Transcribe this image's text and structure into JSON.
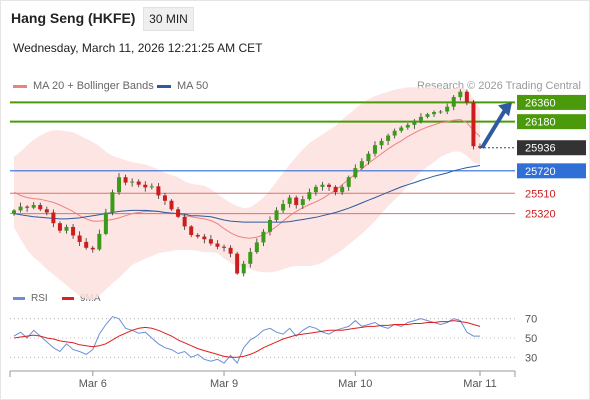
{
  "header": {
    "title": "Hang Seng (HKFE)",
    "timeframe": "30 MIN",
    "datetime": "Wednesday, March 11, 2026 12:21:25 AM CET",
    "credit": "Research © 2026 Trading Central"
  },
  "colors": {
    "support_resistance_green": "#4a9a0b",
    "pivot_blue": "#2f6fd6",
    "support_red": "#e07070",
    "band_fill": "#fde0de",
    "ma20": "#f08080",
    "ma50": "#2d5aa0",
    "bull": "#3a9b1a",
    "bear": "#cc1c1c",
    "rsi_line": "#6b8fd4",
    "rsi_ma": "#dd2020",
    "current_price_box": "#333333",
    "arrow": "#2d5aa0"
  },
  "chart_data": [
    {
      "type": "candlestick",
      "title": "",
      "legend": [
        {
          "name": "MA 20 + Bollinger Bands",
          "color": "#f08080"
        },
        {
          "name": "MA 50",
          "color": "#2d5aa0"
        }
      ],
      "ylim": [
        24680,
        26420
      ],
      "x_ticks": [
        {
          "label": "Mar 6",
          "index": 12
        },
        {
          "label": "Mar 9",
          "index": 32
        },
        {
          "label": "Mar 10",
          "index": 52
        },
        {
          "label": "Mar 11",
          "index": 71
        }
      ],
      "levels": [
        {
          "label": "26360",
          "value": 26360,
          "style": "resistance"
        },
        {
          "label": "26180",
          "value": 26180,
          "style": "resistance"
        },
        {
          "label": "25936",
          "value": 25936,
          "style": "current"
        },
        {
          "label": "25720",
          "value": 25720,
          "style": "pivot"
        },
        {
          "label": "25510",
          "value": 25510,
          "style": "support"
        },
        {
          "label": "25320",
          "value": 25320,
          "style": "support"
        }
      ],
      "close": [
        25350,
        25385,
        25375,
        25400,
        25360,
        25330,
        25230,
        25160,
        25195,
        25115,
        25055,
        25000,
        24985,
        25130,
        25330,
        25520,
        25660,
        25610,
        25620,
        25590,
        25565,
        25575,
        25490,
        25440,
        25360,
        25290,
        25200,
        25120,
        25105,
        25080,
        25040,
        25010,
        25000,
        24945,
        24760,
        24850,
        24960,
        25050,
        25150,
        25260,
        25350,
        25410,
        25470,
        25400,
        25455,
        25520,
        25570,
        25590,
        25570,
        25520,
        25570,
        25660,
        25745,
        25810,
        25880,
        25960,
        26000,
        26050,
        26095,
        26125,
        26150,
        26190,
        26225,
        26250,
        26270,
        26275,
        26320,
        26410,
        26460,
        26360,
        25950,
        25936
      ],
      "ma20": [
        25520,
        25490,
        25470,
        25460,
        25455,
        25440,
        25425,
        25400,
        25370,
        25340,
        25300,
        25270,
        25250,
        25250,
        25255,
        25265,
        25280,
        25300,
        25320,
        25330,
        25340,
        25340,
        25340,
        25330,
        25325,
        25320,
        25300,
        25290,
        25280,
        25270,
        25255,
        25225,
        25180,
        25140,
        25110,
        25095,
        25090,
        25100,
        25120,
        25155,
        25200,
        25250,
        25300,
        25340,
        25375,
        25405,
        25430,
        25460,
        25500,
        25540,
        25590,
        25640,
        25690,
        25740,
        25790,
        25835,
        25880,
        25925,
        25965,
        26000,
        26040,
        26075,
        26105,
        26130,
        26150,
        26170,
        26180,
        26195,
        26200,
        26170,
        26100,
        26040
      ],
      "bb_upper": [
        25850,
        25900,
        25960,
        26010,
        26050,
        26080,
        26100,
        26100,
        26090,
        26080,
        26050,
        26020,
        25990,
        25950,
        25900,
        25860,
        25840,
        25820,
        25800,
        25790,
        25780,
        25760,
        25730,
        25700,
        25680,
        25660,
        25620,
        25600,
        25590,
        25580,
        25550,
        25500,
        25460,
        25420,
        25390,
        25370,
        25380,
        25420,
        25470,
        25540,
        25620,
        25700,
        25780,
        25850,
        25920,
        25980,
        26020,
        26060,
        26100,
        26140,
        26200,
        26250,
        26300,
        26350,
        26390,
        26420,
        26440,
        26460,
        26480,
        26490,
        26500,
        26500,
        26500,
        26500,
        26500,
        26490,
        26480,
        26490,
        26500,
        26480,
        26400,
        26300
      ],
      "bb_lower": [
        25190,
        25080,
        24980,
        24910,
        24860,
        24800,
        24750,
        24700,
        24650,
        24600,
        24550,
        24520,
        24510,
        24550,
        24610,
        24670,
        24720,
        24780,
        24840,
        24870,
        24900,
        24920,
        24950,
        24960,
        24970,
        24980,
        24980,
        24980,
        24970,
        24960,
        24960,
        24950,
        24900,
        24860,
        24830,
        24820,
        24800,
        24780,
        24770,
        24770,
        24780,
        24800,
        24820,
        24830,
        24830,
        24830,
        24840,
        24860,
        24900,
        24940,
        24980,
        25030,
        25080,
        25130,
        25190,
        25250,
        25320,
        25390,
        25450,
        25510,
        25580,
        25650,
        25710,
        25760,
        25800,
        25850,
        25880,
        25900,
        25900,
        25860,
        25800,
        25780
      ],
      "ma50": [
        25320,
        25310,
        25300,
        25290,
        25285,
        25280,
        25275,
        25270,
        25270,
        25275,
        25280,
        25290,
        25300,
        25310,
        25320,
        25330,
        25340,
        25345,
        25350,
        25350,
        25350,
        25345,
        25340,
        25330,
        25325,
        25320,
        25315,
        25300,
        25300,
        25295,
        25290,
        25275,
        25260,
        25250,
        25245,
        25240,
        25240,
        25240,
        25240,
        25240,
        25240,
        25240,
        25245,
        25255,
        25265,
        25275,
        25285,
        25300,
        25315,
        25330,
        25350,
        25370,
        25395,
        25420,
        25445,
        25470,
        25495,
        25520,
        25545,
        25570,
        25590,
        25610,
        25630,
        25650,
        25670,
        25685,
        25700,
        25720,
        25735,
        25750,
        25760,
        25770
      ]
    },
    {
      "type": "line",
      "title": "",
      "legend": [
        {
          "name": "RSI",
          "color": "#6b8fd4"
        },
        {
          "name": "9MA",
          "color": "#dd2020"
        }
      ],
      "ylim": [
        20,
        80
      ],
      "y_ticks": [
        70,
        50,
        30
      ],
      "series": [
        {
          "name": "RSI",
          "values": [
            52,
            56,
            50,
            58,
            52,
            46,
            40,
            36,
            44,
            38,
            36,
            33,
            38,
            54,
            64,
            72,
            70,
            60,
            58,
            55,
            56,
            50,
            44,
            40,
            38,
            34,
            36,
            30,
            33,
            28,
            26,
            28,
            24,
            32,
            24,
            40,
            48,
            52,
            58,
            60,
            56,
            54,
            60,
            52,
            58,
            62,
            60,
            56,
            54,
            58,
            60,
            62,
            68,
            62,
            64,
            66,
            62,
            60,
            64,
            62,
            66,
            68,
            70,
            68,
            66,
            64,
            66,
            70,
            68,
            56,
            52,
            52
          ]
        },
        {
          "name": "9MA",
          "values": [
            50,
            51,
            52,
            53,
            52,
            50,
            49,
            47,
            46,
            45,
            43,
            42,
            41,
            42,
            44,
            48,
            52,
            55,
            58,
            60,
            61,
            60,
            58,
            55,
            52,
            48,
            45,
            42,
            39,
            37,
            35,
            33,
            31,
            30,
            30,
            31,
            33,
            36,
            40,
            43,
            46,
            49,
            51,
            53,
            54,
            55,
            56,
            57,
            58,
            58,
            58,
            59,
            60,
            61,
            62,
            62,
            63,
            63,
            64,
            64,
            64,
            65,
            65,
            66,
            66,
            67,
            67,
            68,
            67,
            66,
            64,
            62
          ]
        }
      ]
    }
  ],
  "rsi_label_rsi": "RSI",
  "rsi_label_9ma": "9MA"
}
